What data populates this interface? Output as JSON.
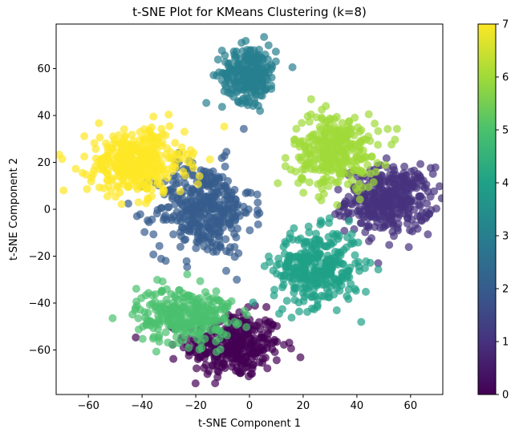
{
  "chart_data": {
    "type": "scatter",
    "title": "t-SNE Plot for KMeans Clustering (k=8)",
    "xlabel": "t-SNE Component 1",
    "ylabel": "t-SNE Component 2",
    "xlim": [
      -72,
      72
    ],
    "ylim": [
      -79,
      79
    ],
    "xticks": [
      -60,
      -40,
      -20,
      0,
      20,
      40,
      60
    ],
    "yticks": [
      -60,
      -40,
      -20,
      0,
      20,
      40,
      60
    ],
    "grid": false,
    "colorbar": {
      "range": [
        0,
        7
      ],
      "ticks": [
        0,
        1,
        2,
        3,
        4,
        5,
        6,
        7
      ],
      "colors": [
        "#440154",
        "#46327e",
        "#365c8d",
        "#277f8e",
        "#1fa187",
        "#4ac16d",
        "#a0da39",
        "#fde725"
      ]
    },
    "marker_alpha": 0.7,
    "clusters": [
      {
        "label": 0,
        "cx": -6,
        "cy": -58,
        "sx": 9,
        "sy": 7,
        "n": 320
      },
      {
        "label": 1,
        "cx": 52,
        "cy": 4,
        "sx": 8,
        "sy": 7,
        "n": 360
      },
      {
        "label": 2,
        "cx": -17,
        "cy": 0,
        "sx": 9,
        "sy": 10,
        "n": 380
      },
      {
        "label": 3,
        "cx": 0,
        "cy": 58,
        "sx": 5,
        "sy": 6,
        "n": 240
      },
      {
        "label": 4,
        "cx": 25,
        "cy": -25,
        "sx": 8,
        "sy": 8,
        "n": 330
      },
      {
        "label": 5,
        "cx": -24,
        "cy": -45,
        "sx": 9,
        "sy": 6,
        "n": 280
      },
      {
        "label": 6,
        "cx": 32,
        "cy": 25,
        "sx": 8,
        "sy": 8,
        "n": 300
      },
      {
        "label": 7,
        "cx": -42,
        "cy": 20,
        "sx": 9,
        "sy": 7,
        "n": 360
      }
    ]
  }
}
